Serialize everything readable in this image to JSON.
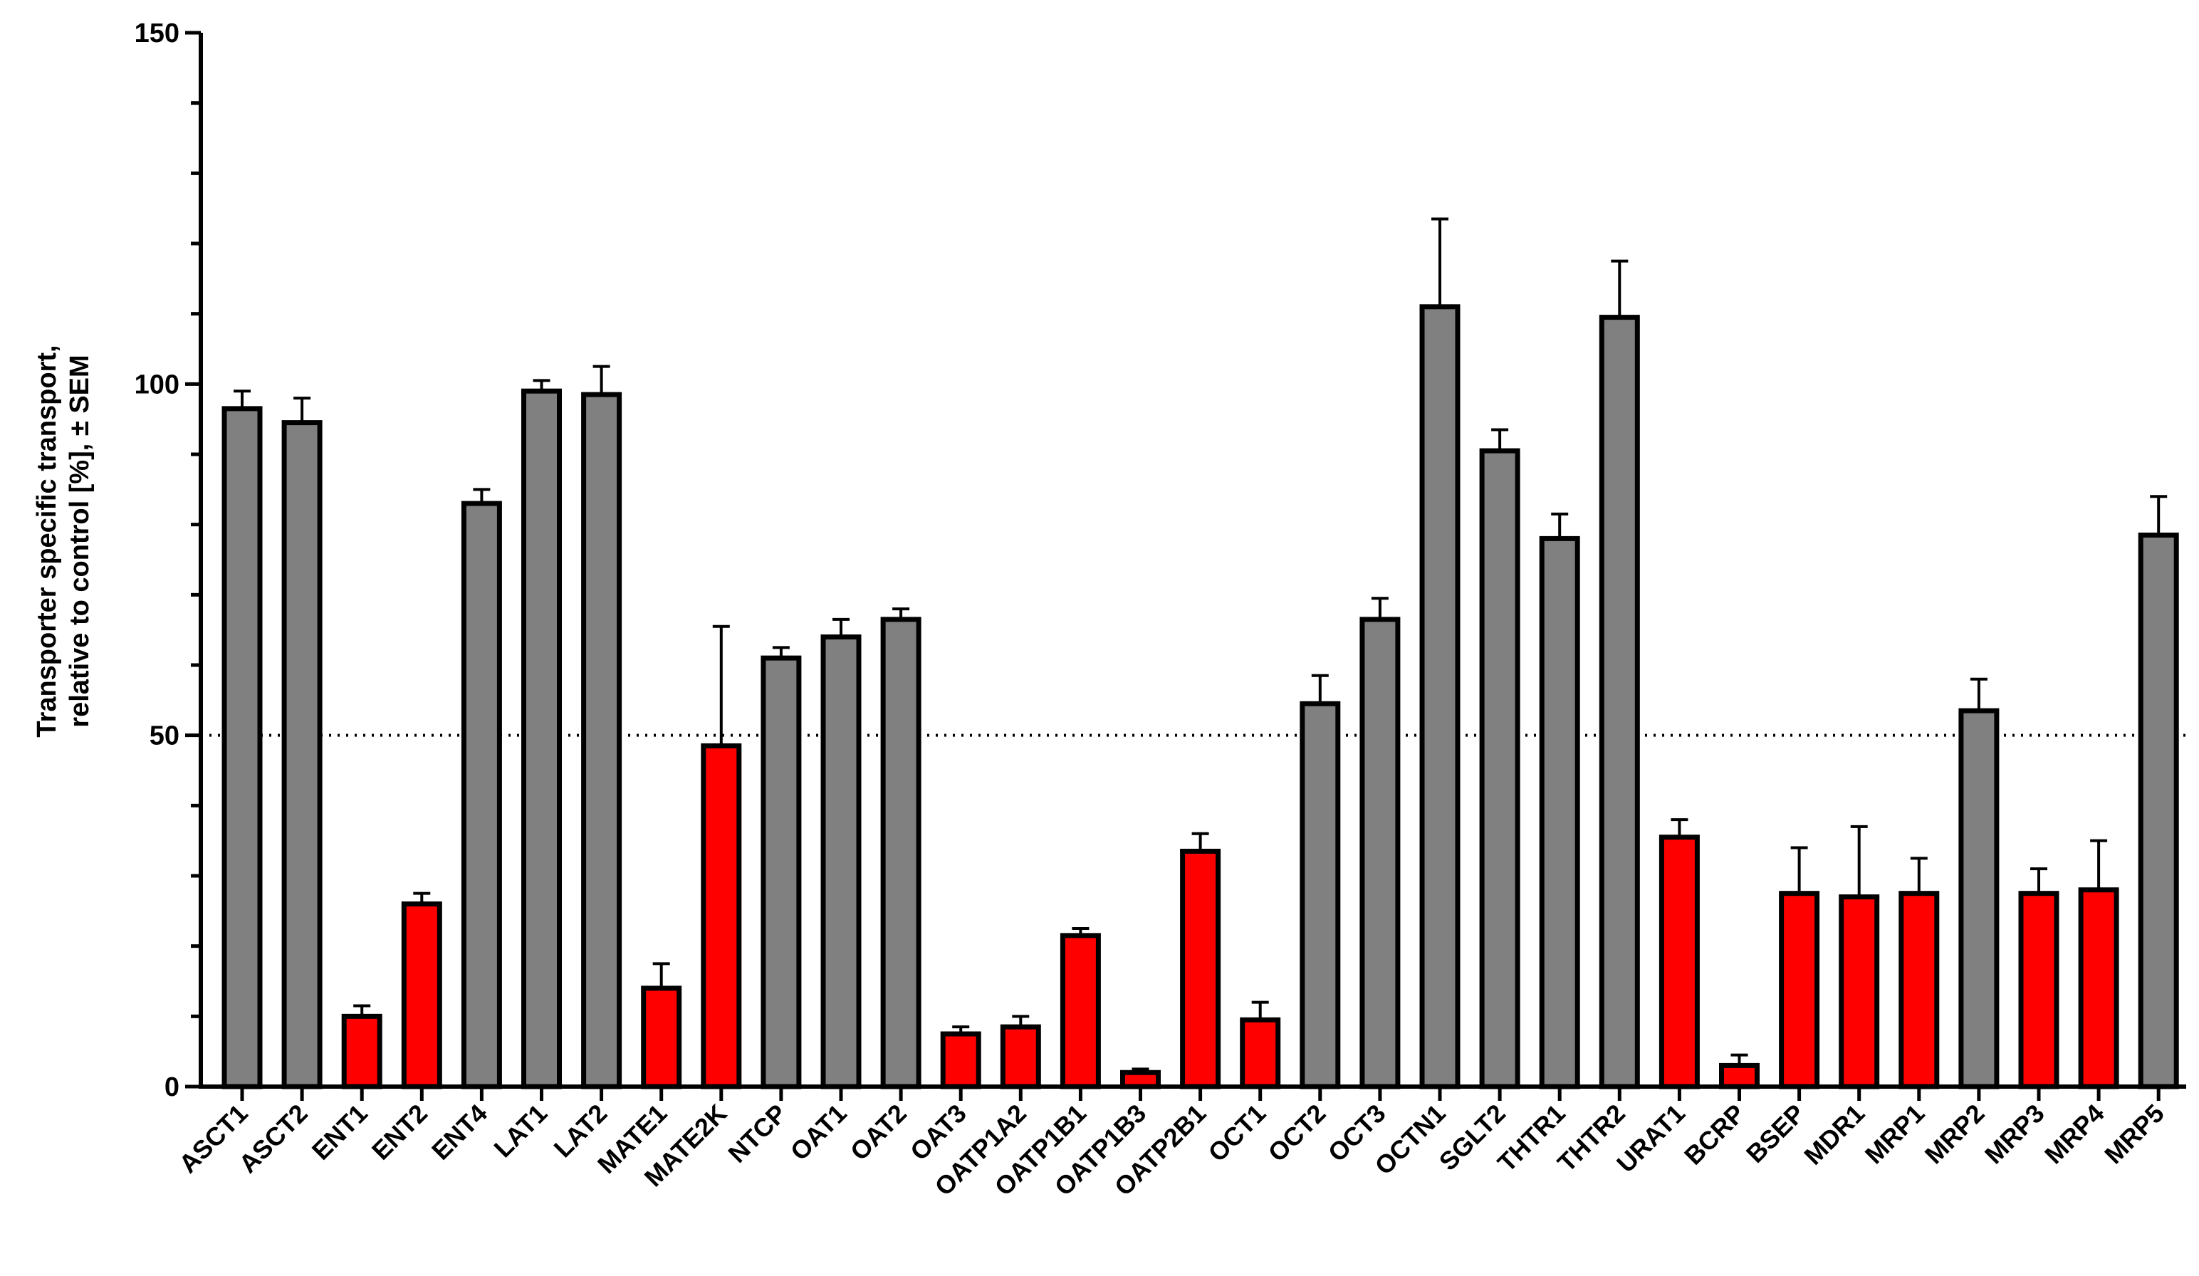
{
  "chart_data": {
    "type": "bar",
    "ylabel": [
      "Transporter specific transport,",
      "relative to control [%], ± SEM"
    ],
    "ylim": [
      0,
      150
    ],
    "yticks": [
      "0",
      "50",
      "100",
      "150"
    ],
    "reference_line": 50,
    "grid": false,
    "colors": {
      "inhibited": "#ff0000",
      "not_inhibited": "#808080",
      "outline": "#000000"
    },
    "categories": [
      "ASCT1",
      "ASCT2",
      "ENT1",
      "ENT2",
      "ENT4",
      "LAT1",
      "LAT2",
      "MATE1",
      "MATE2K",
      "NTCP",
      "OAT1",
      "OAT2",
      "OAT3",
      "OATP1A2",
      "OATP1B1",
      "OATP1B3",
      "OATP2B1",
      "OCT1",
      "OCT2",
      "OCT3",
      "OCTN1",
      "SGLT2",
      "THTR1",
      "THTR2",
      "URAT1",
      "BCRP",
      "BSEP",
      "MDR1",
      "MRP1",
      "MRP2",
      "MRP3",
      "MRP4",
      "MRP5"
    ],
    "values": [
      96.5,
      94.5,
      10,
      26,
      83,
      99,
      98.5,
      14,
      48.5,
      61,
      64,
      66.5,
      7.5,
      8.5,
      21.5,
      2,
      33.5,
      9.5,
      54.5,
      66.5,
      111,
      90.5,
      78,
      109.5,
      35.5,
      3,
      27.5,
      27,
      27.5,
      53.5,
      27.5,
      28,
      78.5
    ],
    "errors": [
      2.5,
      3.5,
      1.5,
      1.5,
      2,
      1.5,
      4,
      3.5,
      17,
      1.5,
      2.5,
      1.5,
      1,
      1.5,
      1,
      0.5,
      2.5,
      2.5,
      4,
      3,
      12.5,
      3,
      3.5,
      8,
      2.5,
      1.5,
      6.5,
      10,
      5,
      4.5,
      3.5,
      7,
      5.5
    ],
    "bar_colors": [
      "gray",
      "gray",
      "red",
      "red",
      "gray",
      "gray",
      "gray",
      "red",
      "red",
      "gray",
      "gray",
      "gray",
      "red",
      "red",
      "red",
      "red",
      "red",
      "red",
      "gray",
      "gray",
      "gray",
      "gray",
      "gray",
      "gray",
      "red",
      "red",
      "red",
      "red",
      "red",
      "gray",
      "red",
      "red",
      "gray"
    ]
  }
}
